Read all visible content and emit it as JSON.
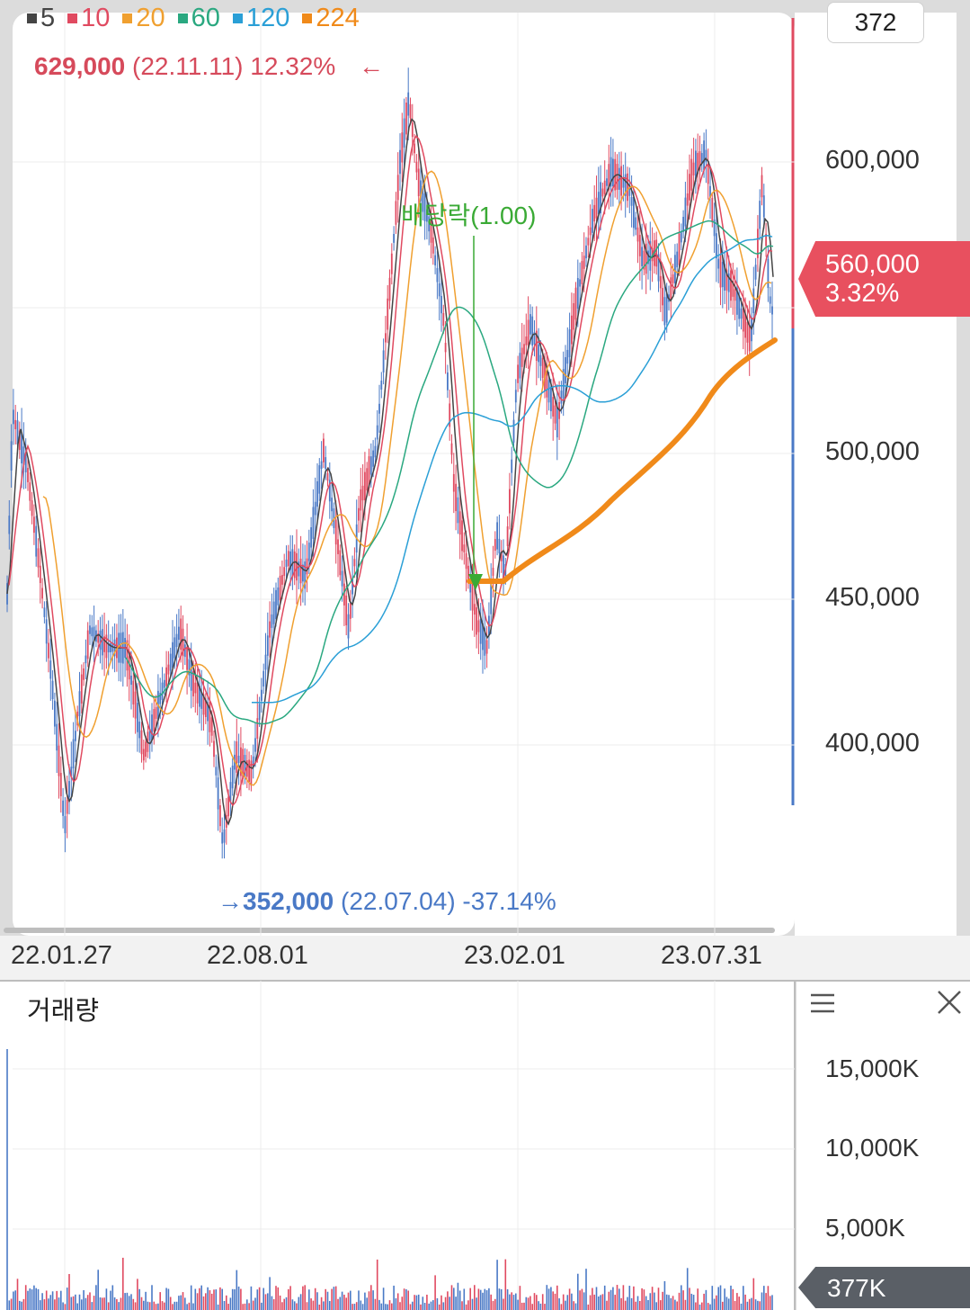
{
  "legend": [
    {
      "label": "5",
      "color": "#444444"
    },
    {
      "label": "10",
      "color": "#e04a60"
    },
    {
      "label": "20",
      "color": "#f0a030"
    },
    {
      "label": "60",
      "color": "#2aa880"
    },
    {
      "label": "120",
      "color": "#2a9fd6"
    },
    {
      "label": "224",
      "color": "#f08a1a"
    }
  ],
  "tick_count": "372",
  "high": {
    "price": "629,000",
    "date": "(22.11.11)",
    "pct": "12.32%",
    "arrow": "←"
  },
  "low": {
    "arrow": "→",
    "price": "352,000",
    "date": "(22.07.04)",
    "pct": "-37.14%"
  },
  "dividend_label": "배당락(1.00)",
  "price_axis": [
    "600,000",
    "500,000",
    "450,000",
    "400,000"
  ],
  "current": {
    "price": "560,000",
    "pct": "3.32%"
  },
  "date_axis": [
    "22.01.27",
    "22.08.01",
    "23.02.01",
    "23.07.31"
  ],
  "volume": {
    "title": "거래량",
    "axis": [
      "15,000K",
      "10,000K",
      "5,000K"
    ],
    "current": "377K"
  },
  "colors": {
    "up": "#e04a60",
    "down": "#4a79c6",
    "accent": "#f08a1a"
  }
}
